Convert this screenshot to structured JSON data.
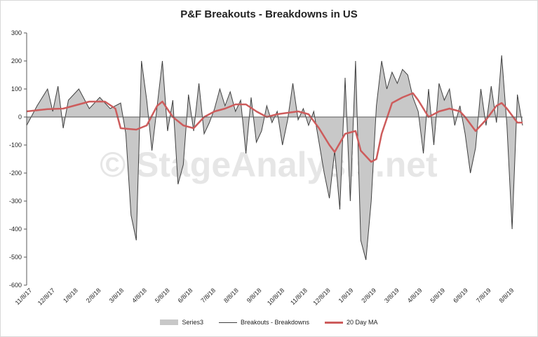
{
  "chart_data": {
    "type": "area",
    "title": "P&F Breakouts - Breakdowns in US",
    "watermark": "© StageAnalysis.net",
    "ylim": [
      -600,
      300
    ],
    "yticks": [
      300,
      200,
      100,
      0,
      -100,
      -200,
      -300,
      -400,
      -500,
      -600
    ],
    "x_tick_labels": [
      "11/8/17",
      "12/8/17",
      "1/8/18",
      "2/8/18",
      "3/8/18",
      "4/8/18",
      "5/8/18",
      "6/8/18",
      "7/8/18",
      "8/8/18",
      "9/8/18",
      "10/8/18",
      "11/8/18",
      "12/8/18",
      "1/8/19",
      "2/8/19",
      "3/8/19",
      "4/8/19",
      "5/8/19",
      "6/8/19",
      "7/8/19",
      "8/8/19"
    ],
    "grid": false,
    "legend_position": "bottom",
    "series": [
      {
        "name": "Series3",
        "style": "area",
        "color": "#c8c8c8",
        "anchors": [
          [
            0,
            -30
          ],
          [
            2,
            40
          ],
          [
            4,
            100
          ],
          [
            5,
            20
          ],
          [
            6,
            110
          ],
          [
            7,
            -40
          ],
          [
            8,
            60
          ],
          [
            10,
            100
          ],
          [
            12,
            30
          ],
          [
            14,
            70
          ],
          [
            16,
            30
          ],
          [
            18,
            50
          ],
          [
            19,
            -60
          ],
          [
            20,
            -350
          ],
          [
            21,
            -440
          ],
          [
            22,
            200
          ],
          [
            23,
            60
          ],
          [
            24,
            -120
          ],
          [
            25,
            40
          ],
          [
            26,
            200
          ],
          [
            27,
            -50
          ],
          [
            28,
            60
          ],
          [
            29,
            -240
          ],
          [
            30,
            -170
          ],
          [
            31,
            80
          ],
          [
            32,
            -50
          ],
          [
            33,
            120
          ],
          [
            34,
            -60
          ],
          [
            35,
            -20
          ],
          [
            36,
            30
          ],
          [
            37,
            100
          ],
          [
            38,
            40
          ],
          [
            39,
            90
          ],
          [
            40,
            20
          ],
          [
            41,
            60
          ],
          [
            42,
            -130
          ],
          [
            43,
            70
          ],
          [
            44,
            -90
          ],
          [
            45,
            -50
          ],
          [
            46,
            40
          ],
          [
            47,
            -20
          ],
          [
            48,
            20
          ],
          [
            49,
            -100
          ],
          [
            50,
            -10
          ],
          [
            51,
            120
          ],
          [
            52,
            -10
          ],
          [
            53,
            30
          ],
          [
            54,
            -30
          ],
          [
            55,
            20
          ],
          [
            56,
            -90
          ],
          [
            57,
            -200
          ],
          [
            58,
            -290
          ],
          [
            59,
            -120
          ],
          [
            60,
            -330
          ],
          [
            61,
            140
          ],
          [
            62,
            -300
          ],
          [
            63,
            200
          ],
          [
            64,
            -440
          ],
          [
            65,
            -510
          ],
          [
            66,
            -300
          ],
          [
            67,
            40
          ],
          [
            68,
            200
          ],
          [
            69,
            100
          ],
          [
            70,
            160
          ],
          [
            71,
            120
          ],
          [
            72,
            170
          ],
          [
            73,
            150
          ],
          [
            74,
            70
          ],
          [
            75,
            20
          ],
          [
            76,
            -130
          ],
          [
            77,
            100
          ],
          [
            78,
            -100
          ],
          [
            79,
            120
          ],
          [
            80,
            60
          ],
          [
            81,
            100
          ],
          [
            82,
            -30
          ],
          [
            83,
            40
          ],
          [
            84,
            -60
          ],
          [
            85,
            -200
          ],
          [
            86,
            -110
          ],
          [
            87,
            100
          ],
          [
            88,
            -30
          ],
          [
            89,
            110
          ],
          [
            90,
            -20
          ],
          [
            91,
            220
          ],
          [
            92,
            -30
          ],
          [
            93,
            -400
          ],
          [
            94,
            80
          ],
          [
            95,
            -30
          ]
        ]
      },
      {
        "name": "Breakouts - Breakdowns",
        "style": "line",
        "color": "#404040",
        "anchors": [
          [
            0,
            -30
          ],
          [
            2,
            40
          ],
          [
            4,
            100
          ],
          [
            5,
            20
          ],
          [
            6,
            110
          ],
          [
            7,
            -40
          ],
          [
            8,
            60
          ],
          [
            10,
            100
          ],
          [
            12,
            30
          ],
          [
            14,
            70
          ],
          [
            16,
            30
          ],
          [
            18,
            50
          ],
          [
            19,
            -60
          ],
          [
            20,
            -350
          ],
          [
            21,
            -440
          ],
          [
            22,
            200
          ],
          [
            23,
            60
          ],
          [
            24,
            -120
          ],
          [
            25,
            40
          ],
          [
            26,
            200
          ],
          [
            27,
            -50
          ],
          [
            28,
            60
          ],
          [
            29,
            -240
          ],
          [
            30,
            -170
          ],
          [
            31,
            80
          ],
          [
            32,
            -50
          ],
          [
            33,
            120
          ],
          [
            34,
            -60
          ],
          [
            35,
            -20
          ],
          [
            36,
            30
          ],
          [
            37,
            100
          ],
          [
            38,
            40
          ],
          [
            39,
            90
          ],
          [
            40,
            20
          ],
          [
            41,
            60
          ],
          [
            42,
            -130
          ],
          [
            43,
            70
          ],
          [
            44,
            -90
          ],
          [
            45,
            -50
          ],
          [
            46,
            40
          ],
          [
            47,
            -20
          ],
          [
            48,
            20
          ],
          [
            49,
            -100
          ],
          [
            50,
            -10
          ],
          [
            51,
            120
          ],
          [
            52,
            -10
          ],
          [
            53,
            30
          ],
          [
            54,
            -30
          ],
          [
            55,
            20
          ],
          [
            56,
            -90
          ],
          [
            57,
            -200
          ],
          [
            58,
            -290
          ],
          [
            59,
            -120
          ],
          [
            60,
            -330
          ],
          [
            61,
            140
          ],
          [
            62,
            -300
          ],
          [
            63,
            200
          ],
          [
            64,
            -440
          ],
          [
            65,
            -510
          ],
          [
            66,
            -300
          ],
          [
            67,
            40
          ],
          [
            68,
            200
          ],
          [
            69,
            100
          ],
          [
            70,
            160
          ],
          [
            71,
            120
          ],
          [
            72,
            170
          ],
          [
            73,
            150
          ],
          [
            74,
            70
          ],
          [
            75,
            20
          ],
          [
            76,
            -130
          ],
          [
            77,
            100
          ],
          [
            78,
            -100
          ],
          [
            79,
            120
          ],
          [
            80,
            60
          ],
          [
            81,
            100
          ],
          [
            82,
            -30
          ],
          [
            83,
            40
          ],
          [
            84,
            -60
          ],
          [
            85,
            -200
          ],
          [
            86,
            -110
          ],
          [
            87,
            100
          ],
          [
            88,
            -30
          ],
          [
            89,
            110
          ],
          [
            90,
            -20
          ],
          [
            91,
            220
          ],
          [
            92,
            -30
          ],
          [
            93,
            -400
          ],
          [
            94,
            80
          ],
          [
            95,
            -30
          ]
        ]
      },
      {
        "name": "20 Day MA",
        "style": "line",
        "color": "#cd5c5c",
        "anchors": [
          [
            0,
            20
          ],
          [
            4,
            28
          ],
          [
            7,
            30
          ],
          [
            9,
            40
          ],
          [
            12,
            55
          ],
          [
            15,
            55
          ],
          [
            17,
            30
          ],
          [
            18,
            -40
          ],
          [
            21,
            -45
          ],
          [
            23,
            -30
          ],
          [
            25,
            40
          ],
          [
            26,
            55
          ],
          [
            28,
            0
          ],
          [
            30,
            -30
          ],
          [
            32,
            -40
          ],
          [
            34,
            0
          ],
          [
            36,
            20
          ],
          [
            38,
            30
          ],
          [
            40,
            45
          ],
          [
            42,
            45
          ],
          [
            44,
            20
          ],
          [
            46,
            0
          ],
          [
            48,
            10
          ],
          [
            50,
            15
          ],
          [
            52,
            20
          ],
          [
            54,
            10
          ],
          [
            56,
            -40
          ],
          [
            58,
            -100
          ],
          [
            59,
            -125
          ],
          [
            61,
            -60
          ],
          [
            63,
            -50
          ],
          [
            64,
            -120
          ],
          [
            66,
            -160
          ],
          [
            67,
            -150
          ],
          [
            68,
            -60
          ],
          [
            70,
            50
          ],
          [
            72,
            70
          ],
          [
            74,
            85
          ],
          [
            75,
            60
          ],
          [
            77,
            0
          ],
          [
            79,
            20
          ],
          [
            81,
            30
          ],
          [
            83,
            20
          ],
          [
            84,
            0
          ],
          [
            86,
            -50
          ],
          [
            88,
            -10
          ],
          [
            90,
            40
          ],
          [
            91,
            50
          ],
          [
            92,
            30
          ],
          [
            94,
            -20
          ],
          [
            95,
            -20
          ]
        ]
      }
    ]
  }
}
